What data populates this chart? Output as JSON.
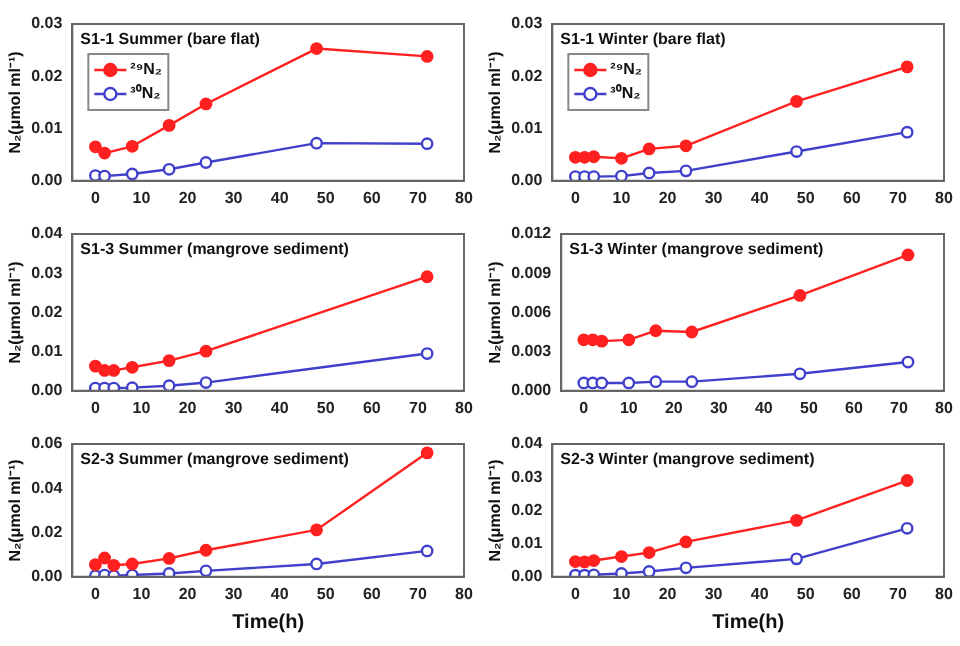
{
  "chart_data": [
    {
      "type": "line",
      "title": "S1-1 Summer (bare flat)",
      "ylabel": "N₂(μmol ml⁻¹)",
      "x": [
        0,
        2,
        8,
        16,
        24,
        48,
        72
      ],
      "xlim": [
        -5,
        80
      ],
      "xticks": [
        0,
        10,
        20,
        30,
        40,
        50,
        60,
        70,
        80
      ],
      "ylim": [
        0,
        0.03
      ],
      "yticks": [
        {
          "value": 0,
          "label": "0.00"
        },
        0.01,
        0.02,
        0.03
      ],
      "grid": false,
      "legend": "top left",
      "marker": "circle",
      "line_style": "solid",
      "series": [
        {
          "name": "²⁹N₂",
          "color": "#ff2020",
          "values": [
            0.0065,
            0.0053,
            0.0066,
            0.0106,
            0.0147,
            0.0253,
            0.0238
          ]
        },
        {
          "name": "³⁰N₂",
          "color": "#4040cc",
          "values": [
            0.001,
            0.0009,
            0.0013,
            0.0022,
            0.0035,
            0.0072,
            0.0071
          ]
        }
      ]
    },
    {
      "type": "line",
      "title": "S1-1 Winter (bare flat)",
      "ylabel": "N₂(μmol ml⁻¹)",
      "x": [
        0,
        2,
        4,
        10,
        16,
        24,
        48,
        72
      ],
      "xlim": [
        -5,
        80
      ],
      "xticks": [
        0,
        10,
        20,
        30,
        40,
        50,
        60,
        70,
        80
      ],
      "ylim": [
        0,
        0.03
      ],
      "yticks": [
        {
          "value": 0,
          "label": "0.00"
        },
        0.01,
        0.02,
        0.03
      ],
      "grid": false,
      "legend": "top left",
      "marker": "circle",
      "line_style": "solid",
      "series": [
        {
          "name": "²⁹N₂",
          "color": "#ff2020",
          "values": [
            0.0045,
            0.0045,
            0.0046,
            0.0043,
            0.0061,
            0.0067,
            0.0152,
            0.0218
          ]
        },
        {
          "name": "³⁰N₂",
          "color": "#4040cc",
          "values": [
            0.0008,
            0.0008,
            0.0008,
            0.0009,
            0.0015,
            0.0019,
            0.0056,
            0.0093
          ]
        }
      ]
    },
    {
      "type": "line",
      "title": "S1-3 Summer (mangrove sediment)",
      "ylabel": "N₂(μmol ml⁻¹)",
      "x": [
        0,
        2,
        4,
        8,
        16,
        24,
        72
      ],
      "xlim": [
        -5,
        80
      ],
      "xticks": [
        0,
        10,
        20,
        30,
        40,
        50,
        60,
        70,
        80
      ],
      "ylim": [
        0,
        0.04
      ],
      "yticks": [
        {
          "value": 0,
          "label": "0.00"
        },
        0.01,
        0.02,
        0.03,
        0.04
      ],
      "grid": false,
      "marker": "circle",
      "line_style": "solid",
      "series": [
        {
          "color": "#ff2020",
          "values": [
            0.0063,
            0.0052,
            0.0052,
            0.006,
            0.0077,
            0.0101,
            0.0291
          ]
        },
        {
          "color": "#4040cc",
          "values": [
            0.0007,
            0.0007,
            0.0007,
            0.0008,
            0.0013,
            0.0021,
            0.0095
          ]
        }
      ]
    },
    {
      "type": "line",
      "title": "S1-3 Winter (mangrove sediment)",
      "ylabel": "N₂(μmol ml⁻¹)",
      "x": [
        0,
        2,
        4,
        10,
        16,
        24,
        48,
        72
      ],
      "xlim": [
        -5,
        80
      ],
      "xticks": [
        0,
        10,
        20,
        30,
        40,
        50,
        60,
        70,
        80
      ],
      "ylim": [
        0,
        0.012
      ],
      "yticks": [
        {
          "value": 0,
          "label": "0.000"
        },
        {
          "value": 0.003,
          "label": "0.003"
        },
        {
          "value": 0.006,
          "label": "0.006"
        },
        {
          "value": 0.009,
          "label": "0.009"
        },
        {
          "value": 0.012,
          "label": "0.012"
        }
      ],
      "grid": false,
      "marker": "circle",
      "line_style": "solid",
      "series": [
        {
          "color": "#ff2020",
          "values": [
            0.0039,
            0.0039,
            0.0038,
            0.0039,
            0.0046,
            0.0045,
            0.0073,
            0.0104
          ]
        },
        {
          "color": "#4040cc",
          "values": [
            0.0006,
            0.0006,
            0.0006,
            0.0006,
            0.0007,
            0.0007,
            0.0013,
            0.0022
          ]
        }
      ]
    },
    {
      "type": "line",
      "title": "S2-3 Summer (mangrove sediment)",
      "xlabel": "Time(h)",
      "ylabel": "N₂(μmol ml⁻¹)",
      "x": [
        0,
        2,
        4,
        8,
        16,
        24,
        48,
        72
      ],
      "xlim": [
        -5,
        80
      ],
      "xticks": [
        0,
        10,
        20,
        30,
        40,
        50,
        60,
        70,
        80
      ],
      "ylim": [
        0,
        0.06
      ],
      "yticks": [
        {
          "value": 0,
          "label": "0.00"
        },
        0.02,
        0.04,
        0.06
      ],
      "grid": false,
      "marker": "circle",
      "line_style": "solid",
      "series": [
        {
          "color": "#ff2020",
          "values": [
            0.0055,
            0.0085,
            0.0052,
            0.0058,
            0.0083,
            0.012,
            0.0212,
            0.056
          ]
        },
        {
          "color": "#4040cc",
          "values": [
            0.0005,
            0.0008,
            0.0005,
            0.0008,
            0.0015,
            0.0027,
            0.0058,
            0.0117
          ]
        }
      ]
    },
    {
      "type": "line",
      "title": "S2-3 Winter (mangrove sediment)",
      "xlabel": "Time(h)",
      "ylabel": "N₂(μmol ml⁻¹)",
      "x": [
        0,
        2,
        4,
        10,
        16,
        24,
        48,
        72
      ],
      "xlim": [
        -5,
        80
      ],
      "xticks": [
        0,
        10,
        20,
        30,
        40,
        50,
        60,
        70,
        80
      ],
      "ylim": [
        0,
        0.04
      ],
      "yticks": [
        {
          "value": 0,
          "label": "0.00"
        },
        0.01,
        0.02,
        0.03,
        0.04
      ],
      "grid": false,
      "marker": "circle",
      "line_style": "solid",
      "series": [
        {
          "color": "#ff2020",
          "values": [
            0.0046,
            0.0045,
            0.0049,
            0.0061,
            0.0073,
            0.0105,
            0.017,
            0.029
          ]
        },
        {
          "color": "#4040cc",
          "values": [
            0.0005,
            0.0005,
            0.0006,
            0.001,
            0.0016,
            0.0027,
            0.0054,
            0.0146
          ]
        }
      ]
    }
  ]
}
